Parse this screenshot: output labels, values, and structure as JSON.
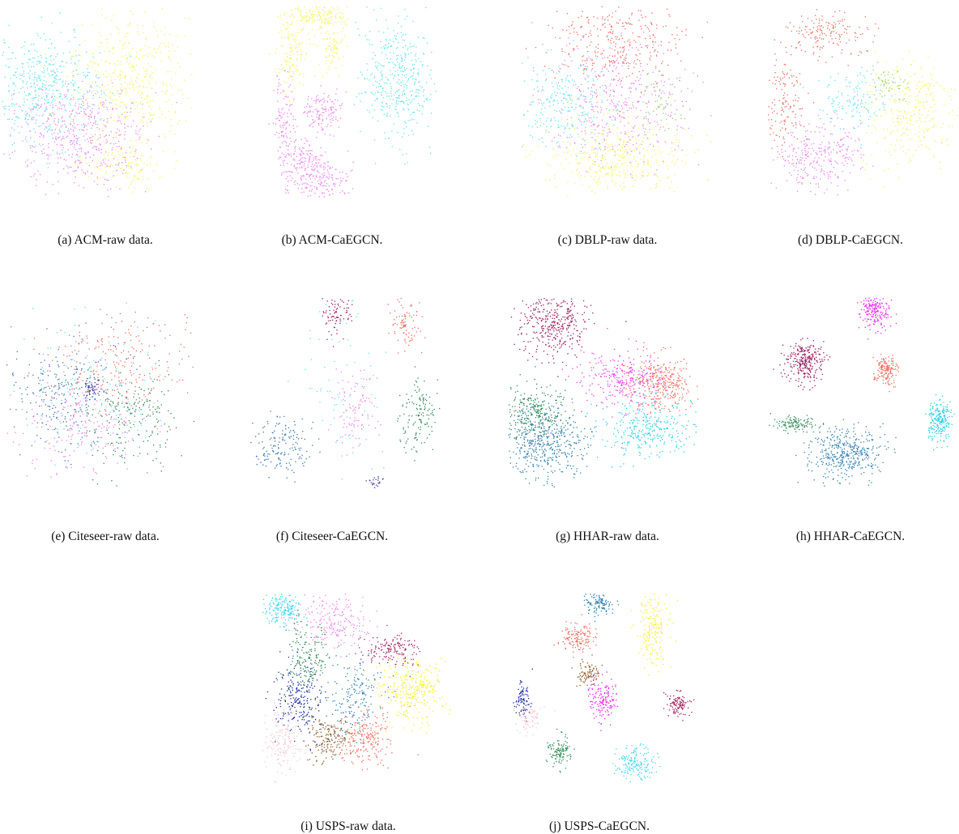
{
  "figure": {
    "charts": [
      {
        "id": "a",
        "caption": "(a) ACM-raw data.",
        "type": "scatter",
        "title": "",
        "xlabel": "",
        "ylabel": "",
        "grid": false,
        "legend": "none",
        "clusters": [
          {
            "color": "#5ee3f2",
            "cx": 0.22,
            "cy": 0.42,
            "sx": 0.14,
            "sy": 0.15,
            "n": 520
          },
          {
            "color": "#f4f45a",
            "cx": 0.66,
            "cy": 0.38,
            "sx": 0.16,
            "sy": 0.17,
            "n": 450
          },
          {
            "color": "#ee82ee",
            "cx": 0.42,
            "cy": 0.68,
            "sx": 0.16,
            "sy": 0.13,
            "n": 480
          },
          {
            "color": "#f4f45a",
            "cx": 0.62,
            "cy": 0.82,
            "sx": 0.1,
            "sy": 0.06,
            "n": 120
          }
        ]
      },
      {
        "id": "b",
        "caption": "(b) ACM-CaEGCN.",
        "type": "scatter",
        "title": "",
        "xlabel": "",
        "ylabel": "",
        "grid": false,
        "legend": "none",
        "clusters": [
          {
            "color": "#f4f45a",
            "cx": 0.38,
            "cy": 0.06,
            "sx": 0.07,
            "sy": 0.03,
            "n": 160
          },
          {
            "color": "#f4f45a",
            "cx": 0.24,
            "cy": 0.24,
            "sx": 0.04,
            "sy": 0.1,
            "n": 140
          },
          {
            "color": "#f4f45a",
            "cx": 0.44,
            "cy": 0.22,
            "sx": 0.03,
            "sy": 0.06,
            "n": 90
          },
          {
            "color": "#5ee3f2",
            "cx": 0.78,
            "cy": 0.4,
            "sx": 0.09,
            "sy": 0.15,
            "n": 420
          },
          {
            "color": "#ee82ee",
            "cx": 0.2,
            "cy": 0.6,
            "sx": 0.03,
            "sy": 0.12,
            "n": 120
          },
          {
            "color": "#ee82ee",
            "cx": 0.4,
            "cy": 0.55,
            "sx": 0.05,
            "sy": 0.05,
            "n": 140
          },
          {
            "color": "#ee82ee",
            "cx": 0.38,
            "cy": 0.9,
            "sx": 0.08,
            "sy": 0.05,
            "n": 180
          },
          {
            "color": "#ee82ee",
            "cx": 0.3,
            "cy": 0.8,
            "sx": 0.06,
            "sy": 0.05,
            "n": 120
          }
        ]
      },
      {
        "id": "c",
        "caption": "(c) DBLP-raw data.",
        "type": "scatter",
        "title": "",
        "xlabel": "",
        "ylabel": "",
        "grid": false,
        "legend": "none",
        "clusters": [
          {
            "color": "#f06a5e",
            "cx": 0.5,
            "cy": 0.2,
            "sx": 0.16,
            "sy": 0.11,
            "n": 320
          },
          {
            "color": "#ee82ee",
            "cx": 0.52,
            "cy": 0.5,
            "sx": 0.2,
            "sy": 0.16,
            "n": 420
          },
          {
            "color": "#5ee3f2",
            "cx": 0.22,
            "cy": 0.5,
            "sx": 0.12,
            "sy": 0.12,
            "n": 260
          },
          {
            "color": "#f4f45a",
            "cx": 0.5,
            "cy": 0.78,
            "sx": 0.18,
            "sy": 0.1,
            "n": 420
          },
          {
            "color": "#9ad06a",
            "cx": 0.72,
            "cy": 0.52,
            "sx": 0.06,
            "sy": 0.08,
            "n": 60
          }
        ]
      },
      {
        "id": "d",
        "caption": "(d) DBLP-CaEGCN.",
        "type": "scatter",
        "title": "",
        "xlabel": "",
        "ylabel": "",
        "grid": false,
        "legend": "none",
        "clusters": [
          {
            "color": "#f06a5e",
            "cx": 0.3,
            "cy": 0.15,
            "sx": 0.1,
            "sy": 0.06,
            "n": 170
          },
          {
            "color": "#f06a5e",
            "cx": 0.1,
            "cy": 0.5,
            "sx": 0.05,
            "sy": 0.12,
            "n": 140
          },
          {
            "color": "#ee82ee",
            "cx": 0.22,
            "cy": 0.78,
            "sx": 0.09,
            "sy": 0.1,
            "n": 220
          },
          {
            "color": "#5ee3f2",
            "cx": 0.45,
            "cy": 0.5,
            "sx": 0.08,
            "sy": 0.08,
            "n": 130
          },
          {
            "color": "#f4f45a",
            "cx": 0.75,
            "cy": 0.55,
            "sx": 0.12,
            "sy": 0.14,
            "n": 300
          },
          {
            "color": "#9ad06a",
            "cx": 0.62,
            "cy": 0.42,
            "sx": 0.06,
            "sy": 0.06,
            "n": 60
          },
          {
            "color": "#ee82ee",
            "cx": 0.4,
            "cy": 0.75,
            "sx": 0.06,
            "sy": 0.08,
            "n": 80
          }
        ]
      },
      {
        "id": "e",
        "caption": "(e) Citeseer-raw data.",
        "type": "scatter",
        "title": "",
        "xlabel": "",
        "ylabel": "",
        "grid": false,
        "legend": "none",
        "clusters": [
          {
            "color": "#f06a5e",
            "cx": 0.6,
            "cy": 0.35,
            "sx": 0.18,
            "sy": 0.15,
            "n": 260
          },
          {
            "color": "#3a75b5",
            "cx": 0.32,
            "cy": 0.52,
            "sx": 0.16,
            "sy": 0.14,
            "n": 240
          },
          {
            "color": "#2e8b57",
            "cx": 0.65,
            "cy": 0.62,
            "sx": 0.15,
            "sy": 0.12,
            "n": 200
          },
          {
            "color": "#ee82ee",
            "cx": 0.4,
            "cy": 0.66,
            "sx": 0.16,
            "sy": 0.12,
            "n": 200
          },
          {
            "color": "#5ee3f2",
            "cx": 0.45,
            "cy": 0.45,
            "sx": 0.18,
            "sy": 0.16,
            "n": 120
          },
          {
            "color": "#3d3d9e",
            "cx": 0.46,
            "cy": 0.48,
            "sx": 0.03,
            "sy": 0.03,
            "n": 60
          }
        ]
      },
      {
        "id": "f",
        "caption": "(f) Citeseer-CaEGCN.",
        "type": "scatter",
        "title": "",
        "xlabel": "",
        "ylabel": "",
        "grid": false,
        "legend": "none",
        "clusters": [
          {
            "color": "#a0205e",
            "cx": 0.45,
            "cy": 0.1,
            "sx": 0.04,
            "sy": 0.06,
            "n": 80
          },
          {
            "color": "#f06a5e",
            "cx": 0.82,
            "cy": 0.15,
            "sx": 0.04,
            "sy": 0.08,
            "n": 90
          },
          {
            "color": "#3a75b5",
            "cx": 0.17,
            "cy": 0.78,
            "sx": 0.07,
            "sy": 0.08,
            "n": 160
          },
          {
            "color": "#2e8b57",
            "cx": 0.88,
            "cy": 0.62,
            "sx": 0.05,
            "sy": 0.1,
            "n": 140
          },
          {
            "color": "#ee82ee",
            "cx": 0.55,
            "cy": 0.58,
            "sx": 0.05,
            "sy": 0.1,
            "n": 110
          },
          {
            "color": "#5ee3f2",
            "cx": 0.5,
            "cy": 0.45,
            "sx": 0.1,
            "sy": 0.2,
            "n": 70
          },
          {
            "color": "#3d3d9e",
            "cx": 0.66,
            "cy": 0.96,
            "sx": 0.02,
            "sy": 0.02,
            "n": 25
          }
        ]
      },
      {
        "id": "g",
        "caption": "(g) HHAR-raw data.",
        "type": "scatter",
        "title": "",
        "xlabel": "",
        "ylabel": "",
        "grid": false,
        "legend": "none",
        "clusters": [
          {
            "color": "#9a1a5e",
            "cx": 0.24,
            "cy": 0.13,
            "sx": 0.09,
            "sy": 0.09,
            "n": 380
          },
          {
            "color": "#e83ee8",
            "cx": 0.6,
            "cy": 0.43,
            "sx": 0.1,
            "sy": 0.07,
            "n": 300
          },
          {
            "color": "#f06a5e",
            "cx": 0.8,
            "cy": 0.45,
            "sx": 0.08,
            "sy": 0.07,
            "n": 320
          },
          {
            "color": "#22d0ea",
            "cx": 0.72,
            "cy": 0.68,
            "sx": 0.12,
            "sy": 0.07,
            "n": 300
          },
          {
            "color": "#2e8b57",
            "cx": 0.14,
            "cy": 0.6,
            "sx": 0.09,
            "sy": 0.07,
            "n": 280
          },
          {
            "color": "#2f7fb0",
            "cx": 0.2,
            "cy": 0.75,
            "sx": 0.11,
            "sy": 0.09,
            "n": 480
          }
        ]
      },
      {
        "id": "h",
        "caption": "(h) HHAR-CaEGCN.",
        "type": "scatter",
        "title": "",
        "xlabel": "",
        "ylabel": "",
        "grid": false,
        "legend": "none",
        "clusters": [
          {
            "color": "#f020f0",
            "cx": 0.56,
            "cy": 0.07,
            "sx": 0.04,
            "sy": 0.05,
            "n": 200
          },
          {
            "color": "#9a1a5e",
            "cx": 0.2,
            "cy": 0.34,
            "sx": 0.05,
            "sy": 0.05,
            "n": 280
          },
          {
            "color": "#f06a5e",
            "cx": 0.62,
            "cy": 0.38,
            "sx": 0.03,
            "sy": 0.04,
            "n": 160
          },
          {
            "color": "#22d0ea",
            "cx": 0.89,
            "cy": 0.64,
            "sx": 0.03,
            "sy": 0.05,
            "n": 220
          },
          {
            "color": "#2e8b57",
            "cx": 0.16,
            "cy": 0.66,
            "sx": 0.06,
            "sy": 0.02,
            "n": 120
          },
          {
            "color": "#2f7fb0",
            "cx": 0.41,
            "cy": 0.81,
            "sx": 0.09,
            "sy": 0.06,
            "n": 420
          }
        ]
      },
      {
        "id": "i",
        "caption": "(i) USPS-raw data.",
        "type": "scatter",
        "title": "",
        "xlabel": "",
        "ylabel": "",
        "grid": false,
        "legend": "none",
        "clusters": [
          {
            "color": "#3ad6f0",
            "cx": 0.12,
            "cy": 0.08,
            "sx": 0.05,
            "sy": 0.05,
            "n": 200
          },
          {
            "color": "#ee82ee",
            "cx": 0.38,
            "cy": 0.16,
            "sx": 0.09,
            "sy": 0.07,
            "n": 220
          },
          {
            "color": "#a0205e",
            "cx": 0.68,
            "cy": 0.3,
            "sx": 0.07,
            "sy": 0.04,
            "n": 160
          },
          {
            "color": "#f8f020",
            "cx": 0.78,
            "cy": 0.5,
            "sx": 0.08,
            "sy": 0.08,
            "n": 300
          },
          {
            "color": "#2e8b57",
            "cx": 0.25,
            "cy": 0.35,
            "sx": 0.06,
            "sy": 0.1,
            "n": 180
          },
          {
            "color": "#1a2aa0",
            "cx": 0.2,
            "cy": 0.55,
            "sx": 0.06,
            "sy": 0.09,
            "n": 230
          },
          {
            "color": "#f8c8d0",
            "cx": 0.12,
            "cy": 0.78,
            "sx": 0.05,
            "sy": 0.08,
            "n": 180
          },
          {
            "color": "#8b5a2b",
            "cx": 0.35,
            "cy": 0.75,
            "sx": 0.05,
            "sy": 0.06,
            "n": 160
          },
          {
            "color": "#f06a5e",
            "cx": 0.55,
            "cy": 0.75,
            "sx": 0.07,
            "sy": 0.07,
            "n": 220
          },
          {
            "color": "#2f7fb0",
            "cx": 0.5,
            "cy": 0.55,
            "sx": 0.07,
            "sy": 0.1,
            "n": 170
          }
        ]
      },
      {
        "id": "j",
        "caption": "(j) USPS-CaEGCN.",
        "type": "scatter",
        "title": "",
        "xlabel": "",
        "ylabel": "",
        "grid": false,
        "legend": "none",
        "clusters": [
          {
            "color": "#2f7fb0",
            "cx": 0.45,
            "cy": 0.06,
            "sx": 0.04,
            "sy": 0.03,
            "n": 120
          },
          {
            "color": "#f06a5e",
            "cx": 0.34,
            "cy": 0.24,
            "sx": 0.04,
            "sy": 0.04,
            "n": 140
          },
          {
            "color": "#8b5a2b",
            "cx": 0.4,
            "cy": 0.42,
            "sx": 0.03,
            "sy": 0.03,
            "n": 90
          },
          {
            "color": "#f020f0",
            "cx": 0.48,
            "cy": 0.55,
            "sx": 0.04,
            "sy": 0.05,
            "n": 150
          },
          {
            "color": "#f8f020",
            "cx": 0.73,
            "cy": 0.2,
            "sx": 0.04,
            "sy": 0.09,
            "n": 180
          },
          {
            "color": "#a0205e",
            "cx": 0.86,
            "cy": 0.58,
            "sx": 0.03,
            "sy": 0.03,
            "n": 110
          },
          {
            "color": "#1a2aa0",
            "cx": 0.06,
            "cy": 0.55,
            "sx": 0.02,
            "sy": 0.05,
            "n": 90
          },
          {
            "color": "#f8c8d0",
            "cx": 0.1,
            "cy": 0.65,
            "sx": 0.03,
            "sy": 0.04,
            "n": 80
          },
          {
            "color": "#2e8b57",
            "cx": 0.25,
            "cy": 0.82,
            "sx": 0.03,
            "sy": 0.04,
            "n": 120
          },
          {
            "color": "#3ad6f0",
            "cx": 0.64,
            "cy": 0.88,
            "sx": 0.05,
            "sy": 0.04,
            "n": 170
          }
        ]
      }
    ]
  }
}
